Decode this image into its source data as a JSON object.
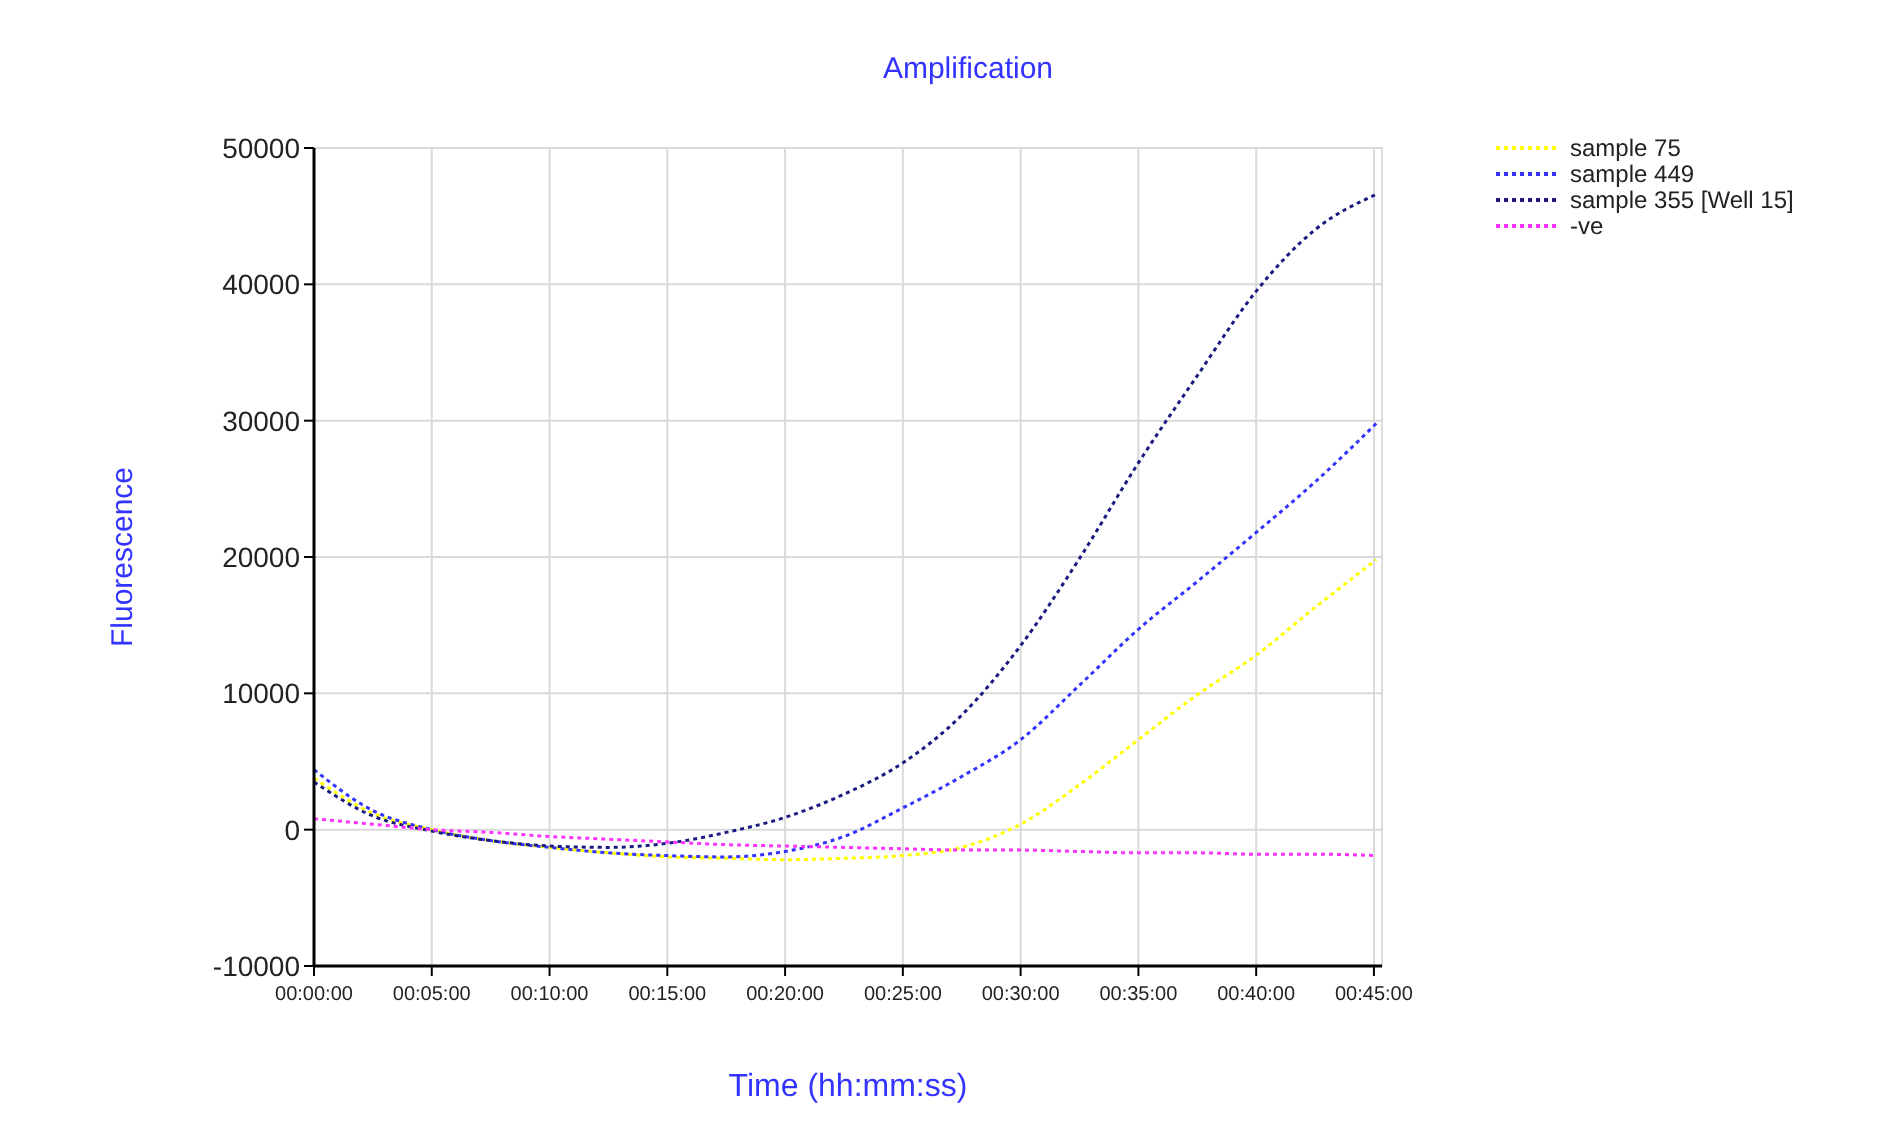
{
  "chart_data": {
    "type": "line",
    "title": "Amplification",
    "xlabel": "Time (hh:mm:ss)",
    "ylabel": "Fluorescence",
    "x": [
      0,
      0.0417,
      0.0833,
      0.125,
      0.1667,
      0.2083,
      0.25,
      0.2917,
      0.3333,
      0.375,
      0.4167,
      0.4583,
      0.5,
      0.5417,
      0.5833,
      0.625,
      0.6667,
      0.7083,
      0.7517
    ],
    "series": [
      {
        "name": "sample 75",
        "color": "#ffff00",
        "values": [
          3800,
          1200,
          0,
          -800,
          -1300,
          -1700,
          -2000,
          -2100,
          -2200,
          -2100,
          -1900,
          -1300,
          400,
          3300,
          6600,
          9900,
          12800,
          16300,
          19800
        ]
      },
      {
        "name": "sample 449",
        "color": "#3333ff",
        "values": [
          4400,
          1400,
          0,
          -800,
          -1300,
          -1700,
          -1900,
          -2000,
          -1600,
          -500,
          1600,
          3900,
          6600,
          10600,
          14700,
          18200,
          21800,
          25500,
          29800
        ]
      },
      {
        "name": "sample 355 [Well 15]",
        "color": "#1a1a80",
        "values": [
          3500,
          1000,
          -100,
          -800,
          -1200,
          -1300,
          -1000,
          -200,
          900,
          2600,
          4900,
          8400,
          13500,
          19900,
          26900,
          33300,
          39500,
          44000,
          46600
        ]
      },
      {
        "name": "-ve",
        "color": "#ff33ff",
        "values": [
          800,
          400,
          0,
          -200,
          -500,
          -700,
          -900,
          -1100,
          -1200,
          -1300,
          -1400,
          -1500,
          -1500,
          -1600,
          -1700,
          -1700,
          -1800,
          -1800,
          -1900
        ]
      }
    ],
    "xlim": [
      0,
      0.7557
    ],
    "xticks": [
      {
        "value": 0,
        "label": "00:00:00"
      },
      {
        "value": 0.083333,
        "label": "00:05:00"
      },
      {
        "value": 0.166667,
        "label": "00:10:00"
      },
      {
        "value": 0.25,
        "label": "00:15:00"
      },
      {
        "value": 0.333333,
        "label": "00:20:00"
      },
      {
        "value": 0.416667,
        "label": "00:25:00"
      },
      {
        "value": 0.5,
        "label": "00:30:00"
      },
      {
        "value": 0.583333,
        "label": "00:35:00"
      },
      {
        "value": 0.666667,
        "label": "00:40:00"
      },
      {
        "value": 0.75,
        "label": "00:45:00"
      }
    ],
    "ylim": [
      -10000,
      50000
    ],
    "yticks": [
      -10000,
      0,
      10000,
      20000,
      30000,
      40000,
      50000
    ],
    "grid": true,
    "legend": "top right",
    "line_style": "dotted"
  }
}
